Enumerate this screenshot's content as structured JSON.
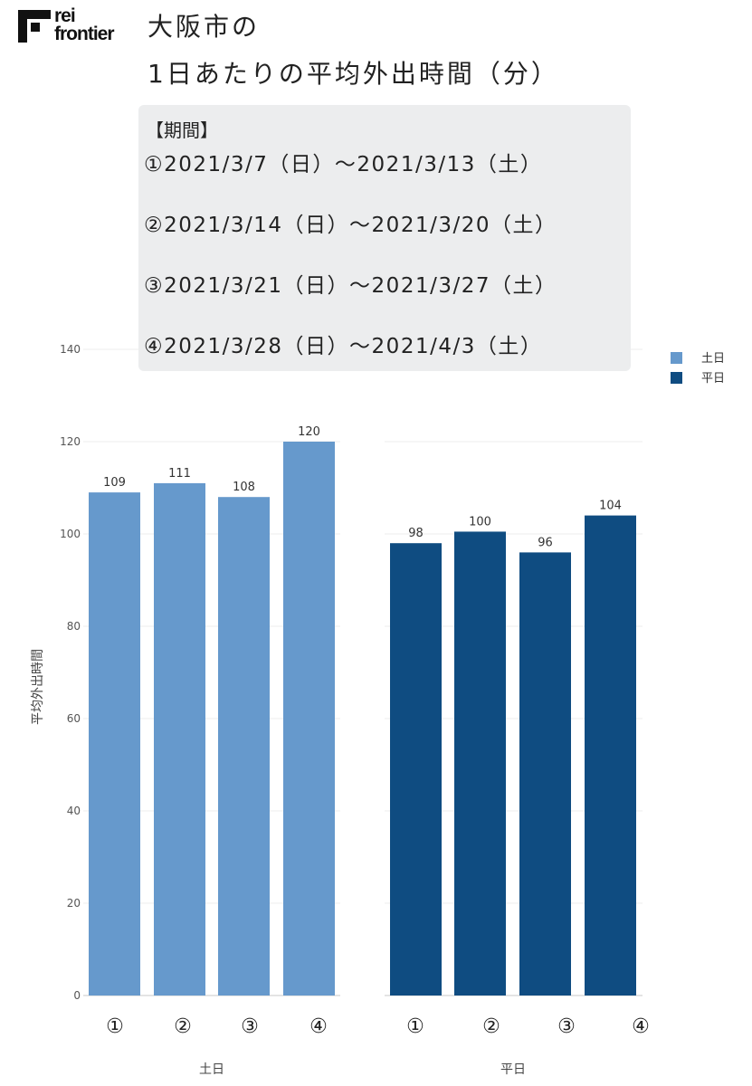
{
  "logo": {
    "line1": "rei",
    "line2": "frontier"
  },
  "title": {
    "line1": "大阪市の",
    "line2": "1日あたりの平均外出時間（分）"
  },
  "period_box": {
    "heading": "【期間】",
    "items": [
      "①2021/3/7（日）～2021/3/13（土）",
      "②2021/3/14（日）～2021/3/20（土）",
      "③2021/3/21（日）～2021/3/27（土）",
      "④2021/3/28（日）～2021/4/3（土）"
    ]
  },
  "chart_data": {
    "type": "bar",
    "title": "大阪市の 1日あたりの平均外出時間（分）",
    "ylabel": "平均外出時間",
    "ylim": [
      0,
      140
    ],
    "yticks": [
      0,
      20,
      40,
      60,
      80,
      100,
      120,
      140
    ],
    "grid": true,
    "legend_position": "top-right",
    "categories": [
      "①",
      "②",
      "③",
      "④"
    ],
    "series": [
      {
        "name": "土日",
        "color": "#6699cc",
        "values": [
          109,
          111,
          108,
          120
        ],
        "labels": [
          "109",
          "111",
          "108",
          "120"
        ]
      },
      {
        "name": "平日",
        "color": "#0f4c81",
        "values": [
          98,
          100.5,
          96,
          104
        ],
        "labels": [
          "98",
          "100",
          "96",
          "104"
        ]
      }
    ],
    "facets": [
      "土日",
      "平日"
    ]
  }
}
